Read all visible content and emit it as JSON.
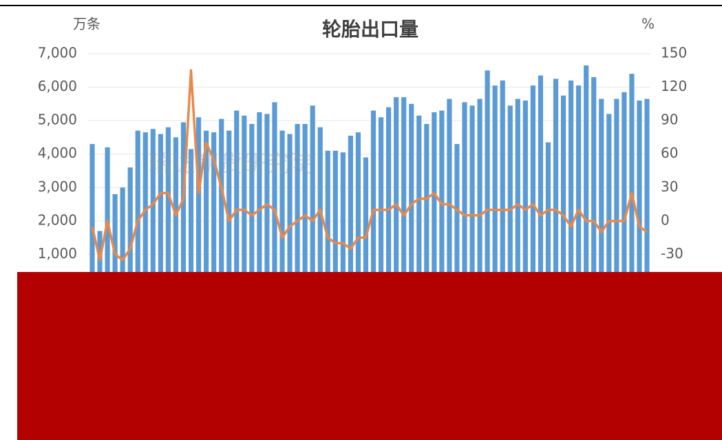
{
  "chart_data": {
    "type": "bar-line",
    "title": "轮胎出口量",
    "y_unit": "万条",
    "y2_unit": "%",
    "annotation": "瑞达期货研究院",
    "ylim": [
      0,
      7000
    ],
    "yticks": [
      0,
      {
        "value": 1000,
        "label": "1,000"
      },
      {
        "value": 2000,
        "label": "2,000"
      },
      {
        "value": 3000,
        "label": "3,000"
      },
      {
        "value": 4000,
        "label": "4,000"
      },
      {
        "value": 5000,
        "label": "5,000"
      },
      {
        "value": 6000,
        "label": "6,000"
      },
      {
        "value": 7000,
        "label": "7,000"
      }
    ],
    "y2lim": [
      -60,
      150
    ],
    "y2ticks": [
      -30,
      0,
      30,
      60,
      90,
      120,
      150
    ],
    "grid": true,
    "series": [
      {
        "name": null,
        "kind": "bar",
        "color": "#5b9bd5",
        "values": [
          4300,
          1700,
          4200,
          2800,
          3000,
          3600,
          4700,
          4650,
          4750,
          4600,
          4800,
          4500,
          4950,
          4150,
          5100,
          4700,
          4650,
          5050,
          4700,
          5300,
          5150,
          4900,
          5250,
          5200,
          5550,
          4700,
          4600,
          4900,
          4900,
          5450,
          4800,
          4100,
          4100,
          4050,
          4550,
          4650,
          3900,
          5300,
          5100,
          5400,
          5700,
          5700,
          5500,
          5150,
          4900,
          5250,
          5300,
          5650,
          4300,
          5550,
          5450,
          5650,
          6500,
          6050,
          6200,
          5450,
          5650,
          5600,
          6050,
          6350,
          4350,
          6250,
          5750,
          6200,
          6050,
          6650,
          6300,
          5650,
          5200,
          5650,
          5850,
          6400,
          5600,
          5650
        ]
      },
      {
        "name": null,
        "kind": "line",
        "axis": "y2",
        "color": "#e8894a",
        "values": [
          -5,
          -35,
          0,
          -30,
          -35,
          -25,
          0,
          10,
          15,
          25,
          25,
          5,
          20,
          135,
          25,
          70,
          55,
          30,
          0,
          10,
          10,
          5,
          10,
          15,
          10,
          -15,
          -5,
          0,
          5,
          0,
          10,
          -15,
          -20,
          -20,
          -25,
          -15,
          -15,
          10,
          10,
          10,
          15,
          5,
          15,
          20,
          20,
          25,
          15,
          15,
          10,
          5,
          5,
          5,
          10,
          10,
          10,
          10,
          15,
          10,
          15,
          5,
          10,
          10,
          5,
          -5,
          10,
          0,
          0,
          -10,
          0,
          0,
          0,
          25,
          -5,
          -10
        ]
      }
    ]
  }
}
